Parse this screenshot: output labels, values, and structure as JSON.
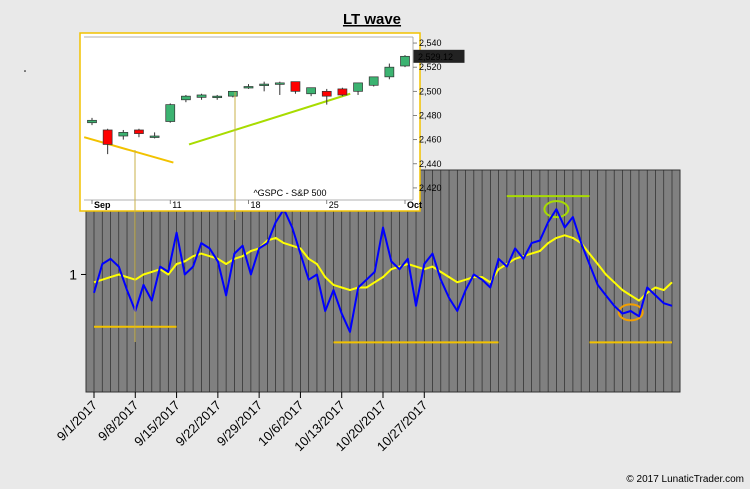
{
  "chart_data": [
    {
      "type": "line",
      "title": "LT wave",
      "xlabel": "",
      "ylabel": "",
      "y_tick_labels": [
        "1"
      ],
      "ylim": [
        0.55,
        1.4
      ],
      "x_tick_labels": [
        "9/1/2017",
        "9/8/2017",
        "9/15/2017",
        "9/22/2017",
        "9/29/2017",
        "10/6/2017",
        "10/13/2017",
        "10/20/2017",
        "10/27/2017"
      ],
      "grid": true,
      "series": [
        {
          "name": "",
          "color": "#0000ff",
          "values": [
            0.93,
            1.04,
            1.06,
            1.03,
            0.94,
            0.86,
            0.96,
            0.9,
            1.03,
            1.01,
            1.16,
            1.0,
            1.03,
            1.12,
            1.1,
            1.05,
            0.92,
            1.08,
            1.11,
            1.0,
            1.1,
            1.12,
            1.2,
            1.25,
            1.18,
            1.08,
            0.98,
            1.0,
            0.86,
            0.94,
            0.85,
            0.78,
            0.95,
            0.98,
            1.01,
            1.18,
            1.05,
            1.02,
            1.06,
            0.88,
            1.04,
            1.08,
            0.98,
            0.91,
            0.86,
            0.94,
            1.0,
            0.98,
            0.95,
            1.06,
            1.03,
            1.1,
            1.06,
            1.12,
            1.13,
            1.2,
            1.25,
            1.18,
            1.22,
            1.12,
            1.04,
            0.96,
            0.92,
            0.88,
            0.85,
            0.86,
            0.84,
            0.95,
            0.92,
            0.89,
            0.88
          ]
        },
        {
          "name": "",
          "color": "#ffff00",
          "values": [
            0.97,
            0.98,
            0.99,
            1.0,
            0.99,
            0.98,
            1.0,
            1.01,
            1.02,
            1.0,
            1.04,
            1.05,
            1.07,
            1.08,
            1.07,
            1.06,
            1.04,
            1.06,
            1.07,
            1.09,
            1.1,
            1.13,
            1.14,
            1.12,
            1.11,
            1.1,
            1.06,
            1.04,
            0.99,
            0.96,
            0.95,
            0.94,
            0.95,
            0.95,
            0.97,
            0.99,
            1.02,
            1.03,
            1.04,
            1.03,
            1.02,
            1.03,
            1.01,
            0.99,
            0.97,
            0.98,
            0.99,
            0.99,
            0.97,
            1.02,
            1.04,
            1.06,
            1.07,
            1.08,
            1.09,
            1.12,
            1.14,
            1.15,
            1.14,
            1.12,
            1.08,
            1.04,
            1.0,
            0.97,
            0.94,
            0.92,
            0.9,
            0.93,
            0.95,
            0.94,
            0.97
          ]
        }
      ],
      "annotations": [
        {
          "kind": "hline",
          "color": "#f2c200",
          "x_from": 0,
          "x_to": 10,
          "y": 0.8
        },
        {
          "kind": "hline",
          "color": "#f2c200",
          "x_from": 29,
          "x_to": 49,
          "y": 0.74
        },
        {
          "kind": "hline",
          "color": "#f2c200",
          "x_from": 60,
          "x_to": 70,
          "y": 0.74
        },
        {
          "kind": "hline",
          "color": "#a8dc00",
          "x_from": 11,
          "x_to": 27,
          "y": 1.26
        },
        {
          "kind": "hline",
          "color": "#a8dc00",
          "x_from": 50,
          "x_to": 60,
          "y": 1.3
        },
        {
          "kind": "ellipse",
          "color": "#a8dc00",
          "x": 56,
          "y": 1.25
        },
        {
          "kind": "ellipse",
          "color": "#f2a000",
          "x": 65,
          "y": 0.855
        }
      ],
      "copyright": "© 2017 LunaticTrader.com"
    },
    {
      "type": "candlestick",
      "title": "",
      "ticker_label": "^GSPC - S&P 500",
      "last_price_label": "2,529.12",
      "x_tick_labels": [
        "Sep",
        "11",
        "18",
        "25",
        "Oct"
      ],
      "y_tick_labels": [
        "2,420",
        "2,440",
        "2,460",
        "2,480",
        "2,500",
        "2,520",
        "2,540"
      ],
      "ylim": [
        2410,
        2545
      ],
      "candles": [
        {
          "o": 2474,
          "h": 2478,
          "l": 2472,
          "c": 2476,
          "color": "#3cb371"
        },
        {
          "o": 2468,
          "h": 2469,
          "l": 2448,
          "c": 2456,
          "color": "#ff0000"
        },
        {
          "o": 2463,
          "h": 2468,
          "l": 2460,
          "c": 2466,
          "color": "#3cb371"
        },
        {
          "o": 2468,
          "h": 2469,
          "l": 2462,
          "c": 2465,
          "color": "#ff0000"
        },
        {
          "o": 2463,
          "h": 2466,
          "l": 2461,
          "c": 2463,
          "color": "#3cb371"
        },
        {
          "o": 2475,
          "h": 2490,
          "l": 2474,
          "c": 2489,
          "color": "#3cb371"
        },
        {
          "o": 2493,
          "h": 2497,
          "l": 2491,
          "c": 2496,
          "color": "#3cb371"
        },
        {
          "o": 2495,
          "h": 2498,
          "l": 2493,
          "c": 2497,
          "color": "#3cb371"
        },
        {
          "o": 2495,
          "h": 2497,
          "l": 2493,
          "c": 2496,
          "color": "#3cb371"
        },
        {
          "o": 2496,
          "h": 2500,
          "l": 2495,
          "c": 2500,
          "color": "#3cb371"
        },
        {
          "o": 2503,
          "h": 2506,
          "l": 2502,
          "c": 2504,
          "color": "#3cb371"
        },
        {
          "o": 2506,
          "h": 2508,
          "l": 2500,
          "c": 2506,
          "color": "#3cb371"
        },
        {
          "o": 2507,
          "h": 2508,
          "l": 2497,
          "c": 2507,
          "color": "#3cb371"
        },
        {
          "o": 2508,
          "h": 2508,
          "l": 2498,
          "c": 2500,
          "color": "#ff0000"
        },
        {
          "o": 2498,
          "h": 2503,
          "l": 2496,
          "c": 2503,
          "color": "#3cb371"
        },
        {
          "o": 2500,
          "h": 2502,
          "l": 2489,
          "c": 2496,
          "color": "#ff0000"
        },
        {
          "o": 2502,
          "h": 2503,
          "l": 2496,
          "c": 2497,
          "color": "#ff0000"
        },
        {
          "o": 2500,
          "h": 2507,
          "l": 2497,
          "c": 2507,
          "color": "#3cb371"
        },
        {
          "o": 2505,
          "h": 2512,
          "l": 2504,
          "c": 2512,
          "color": "#3cb371"
        },
        {
          "o": 2512,
          "h": 2523,
          "l": 2510,
          "c": 2520,
          "color": "#3cb371"
        },
        {
          "o": 2521,
          "h": 2530,
          "l": 2520,
          "c": 2529,
          "color": "#3cb371"
        }
      ],
      "trendlines": [
        {
          "color": "#f2c200",
          "from": [
            -0.5,
            2462
          ],
          "to": [
            5.2,
            2441
          ]
        },
        {
          "color": "#a8dc00",
          "from": [
            6.2,
            2456
          ],
          "to": [
            16.5,
            2498
          ]
        }
      ]
    }
  ]
}
